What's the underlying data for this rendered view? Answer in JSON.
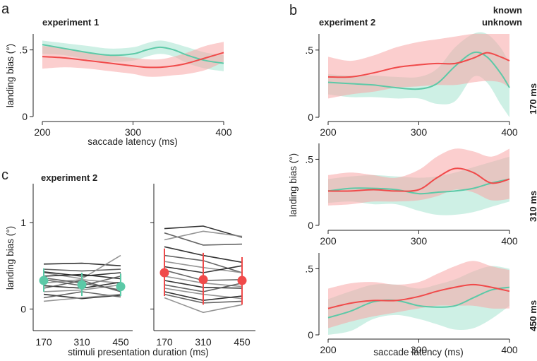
{
  "colors": {
    "known": "#5cc9a7",
    "unknown": "#f04a4a",
    "known_band": "#a6e3d0",
    "unknown_band": "#f7a6a6",
    "line_dark": "#2b2b2b"
  },
  "legend": {
    "known": "known",
    "unknown": "unknown"
  },
  "panels": {
    "a": {
      "letter": "a",
      "title": "experiment 1",
      "ylabel": "landing bias (°)",
      "xlabel": "saccade latency (ms)"
    },
    "b": {
      "letter": "b",
      "title": "experiment 2",
      "ylabel": "landing bias (°)",
      "xlabel": "saccade latency (ms)",
      "rows": [
        {
          "label": "170 ms"
        },
        {
          "label": "310 ms"
        },
        {
          "label": "450 ms"
        }
      ]
    },
    "c": {
      "letter": "c",
      "title": "experiment 2",
      "ylabel": "landing bias (°)",
      "xlabel": "stimuli presentation duration (ms)"
    }
  },
  "chart_data": [
    {
      "id": "a",
      "type": "line",
      "title": "experiment 1",
      "xlabel": "saccade latency (ms)",
      "ylabel": "landing bias (°)",
      "xlim": [
        200,
        400
      ],
      "ylim": [
        0,
        0.62
      ],
      "xticks": [
        200,
        300,
        400
      ],
      "xtick_labels": [
        "200",
        "300",
        "400"
      ],
      "yticks": [
        0,
        0.5
      ],
      "ytick_labels": [
        "0",
        ".5"
      ],
      "series": [
        {
          "name": "known",
          "x": [
            200,
            225,
            250,
            275,
            300,
            315,
            330,
            345,
            360,
            380,
            400
          ],
          "y": [
            0.54,
            0.51,
            0.48,
            0.46,
            0.47,
            0.5,
            0.52,
            0.5,
            0.46,
            0.42,
            0.4
          ],
          "lo": [
            0.47,
            0.46,
            0.43,
            0.41,
            0.42,
            0.45,
            0.47,
            0.45,
            0.4,
            0.36,
            0.34
          ],
          "hi": [
            0.57,
            0.55,
            0.53,
            0.51,
            0.52,
            0.55,
            0.57,
            0.55,
            0.52,
            0.48,
            0.46
          ]
        },
        {
          "name": "unknown",
          "x": [
            200,
            225,
            250,
            275,
            300,
            315,
            330,
            345,
            360,
            380,
            400
          ],
          "y": [
            0.45,
            0.44,
            0.42,
            0.4,
            0.38,
            0.37,
            0.37,
            0.38,
            0.4,
            0.44,
            0.48
          ],
          "lo": [
            0.36,
            0.37,
            0.36,
            0.34,
            0.32,
            0.3,
            0.3,
            0.31,
            0.32,
            0.35,
            0.41
          ],
          "hi": [
            0.53,
            0.51,
            0.48,
            0.46,
            0.44,
            0.43,
            0.43,
            0.45,
            0.48,
            0.53,
            0.56
          ]
        }
      ]
    },
    {
      "id": "b1",
      "type": "line",
      "row_label": "170 ms",
      "xlim": [
        200,
        400
      ],
      "ylim": [
        0,
        0.62
      ],
      "xticks": [
        200,
        300,
        400
      ],
      "xtick_labels": [
        "200",
        "300",
        "400"
      ],
      "yticks": [
        0,
        0.5
      ],
      "ytick_labels": [
        "0",
        ".5"
      ],
      "series": [
        {
          "name": "known",
          "x": [
            200,
            225,
            250,
            275,
            300,
            320,
            340,
            360,
            375,
            390,
            400
          ],
          "y": [
            0.26,
            0.25,
            0.24,
            0.22,
            0.21,
            0.25,
            0.38,
            0.48,
            0.45,
            0.33,
            0.22
          ],
          "lo": [
            0.17,
            0.15,
            0.15,
            0.14,
            0.14,
            0.1,
            0.12,
            0.3,
            0.26,
            0.1,
            0.0
          ],
          "hi": [
            0.32,
            0.31,
            0.31,
            0.3,
            0.3,
            0.36,
            0.52,
            0.62,
            0.62,
            0.52,
            0.4
          ]
        },
        {
          "name": "unknown",
          "x": [
            200,
            225,
            250,
            275,
            300,
            320,
            340,
            360,
            375,
            390,
            400
          ],
          "y": [
            0.3,
            0.3,
            0.33,
            0.37,
            0.39,
            0.4,
            0.4,
            0.44,
            0.48,
            0.45,
            0.42
          ],
          "lo": [
            0.14,
            0.17,
            0.19,
            0.22,
            0.23,
            0.24,
            0.24,
            0.26,
            0.27,
            0.26,
            0.22
          ],
          "hi": [
            0.45,
            0.42,
            0.46,
            0.52,
            0.56,
            0.58,
            0.6,
            0.62,
            0.62,
            0.62,
            0.62
          ]
        }
      ]
    },
    {
      "id": "b2",
      "type": "line",
      "row_label": "310 ms",
      "xlim": [
        200,
        400
      ],
      "ylim": [
        0,
        0.62
      ],
      "xticks": [
        200,
        300,
        400
      ],
      "xtick_labels": [
        "200",
        "300",
        "400"
      ],
      "yticks": [
        0,
        0.5
      ],
      "ytick_labels": [
        "0",
        ".5"
      ],
      "series": [
        {
          "name": "known",
          "x": [
            200,
            225,
            250,
            275,
            300,
            320,
            340,
            360,
            380,
            400
          ],
          "y": [
            0.26,
            0.28,
            0.28,
            0.27,
            0.24,
            0.25,
            0.26,
            0.28,
            0.32,
            0.35
          ],
          "lo": [
            0.17,
            0.18,
            0.16,
            0.16,
            0.11,
            0.08,
            0.08,
            0.1,
            0.14,
            0.18
          ],
          "hi": [
            0.35,
            0.37,
            0.38,
            0.37,
            0.36,
            0.37,
            0.4,
            0.44,
            0.48,
            0.52
          ]
        },
        {
          "name": "unknown",
          "x": [
            200,
            225,
            250,
            275,
            300,
            320,
            340,
            360,
            380,
            400
          ],
          "y": [
            0.26,
            0.26,
            0.27,
            0.26,
            0.27,
            0.36,
            0.43,
            0.4,
            0.32,
            0.35
          ],
          "lo": [
            0.15,
            0.16,
            0.18,
            0.18,
            0.19,
            0.22,
            0.27,
            0.25,
            0.19,
            0.2
          ],
          "hi": [
            0.38,
            0.4,
            0.38,
            0.36,
            0.42,
            0.52,
            0.58,
            0.56,
            0.52,
            0.58
          ]
        }
      ]
    },
    {
      "id": "b3",
      "type": "line",
      "row_label": "450 ms",
      "xlim": [
        200,
        400
      ],
      "ylim": [
        0,
        0.62
      ],
      "xticks": [
        200,
        300,
        400
      ],
      "xtick_labels": [
        "200",
        "300",
        "400"
      ],
      "yticks": [
        0,
        0.5
      ],
      "ytick_labels": [
        "0",
        ".5"
      ],
      "series": [
        {
          "name": "known",
          "x": [
            200,
            225,
            250,
            275,
            300,
            320,
            340,
            360,
            380,
            400
          ],
          "y": [
            0.13,
            0.18,
            0.25,
            0.26,
            0.22,
            0.21,
            0.22,
            0.28,
            0.34,
            0.36
          ],
          "lo": [
            0.0,
            0.03,
            0.12,
            0.15,
            0.12,
            0.08,
            0.04,
            0.05,
            0.12,
            0.22
          ],
          "hi": [
            0.27,
            0.33,
            0.38,
            0.38,
            0.35,
            0.38,
            0.42,
            0.48,
            0.52,
            0.5
          ]
        },
        {
          "name": "unknown",
          "x": [
            200,
            225,
            250,
            275,
            300,
            320,
            340,
            360,
            380,
            400
          ],
          "y": [
            0.2,
            0.24,
            0.26,
            0.26,
            0.29,
            0.33,
            0.36,
            0.38,
            0.36,
            0.33
          ],
          "lo": [
            0.05,
            0.1,
            0.14,
            0.17,
            0.2,
            0.22,
            0.22,
            0.22,
            0.2,
            0.2
          ],
          "hi": [
            0.35,
            0.39,
            0.4,
            0.38,
            0.4,
            0.46,
            0.52,
            0.56,
            0.52,
            0.49
          ]
        }
      ]
    },
    {
      "id": "c",
      "type": "scatter",
      "title": "experiment 2",
      "xlabel": "stimuli presentation duration (ms)",
      "ylabel": "landing bias (°)",
      "categories": [
        "170",
        "310",
        "450"
      ],
      "ylim": [
        -0.25,
        1.45
      ],
      "yticks": [
        0,
        1
      ],
      "ytick_labels": [
        "0",
        "1"
      ],
      "groups": [
        {
          "name": "known",
          "means": [
            0.33,
            0.28,
            0.26
          ],
          "err_lo": [
            0.2,
            0.15,
            0.15
          ],
          "err_hi": [
            0.47,
            0.42,
            0.41
          ],
          "subjects": [
            [
              0.52,
              0.53,
              0.5
            ],
            [
              0.46,
              0.44,
              0.46
            ],
            [
              0.42,
              0.35,
              0.62
            ],
            [
              0.38,
              0.4,
              0.35
            ],
            [
              0.34,
              0.27,
              0.38
            ],
            [
              0.3,
              0.34,
              0.3
            ],
            [
              0.27,
              0.24,
              0.31
            ],
            [
              0.24,
              0.33,
              0.2
            ],
            [
              0.2,
              0.22,
              0.28
            ],
            [
              0.17,
              0.12,
              0.16
            ],
            [
              0.13,
              0.2,
              0.14
            ],
            [
              0.09,
              0.13,
              0.17
            ],
            [
              0.43,
              0.38,
              0.42
            ],
            [
              0.36,
              0.3,
              0.22
            ]
          ]
        },
        {
          "name": "unknown",
          "means": [
            0.42,
            0.34,
            0.33
          ],
          "err_lo": [
            0.15,
            0.05,
            0.05
          ],
          "err_hi": [
            0.7,
            0.65,
            0.6
          ],
          "subjects": [
            [
              0.93,
              0.96,
              0.83
            ],
            [
              0.88,
              0.74,
              0.75
            ],
            [
              0.8,
              0.9,
              0.84
            ],
            [
              0.72,
              0.62,
              0.54
            ],
            [
              0.62,
              0.56,
              0.42
            ],
            [
              0.55,
              0.48,
              0.42
            ],
            [
              0.49,
              0.42,
              0.5
            ],
            [
              0.45,
              0.33,
              0.34
            ],
            [
              0.38,
              0.3,
              0.26
            ],
            [
              0.33,
              0.25,
              0.24
            ],
            [
              0.28,
              0.2,
              0.3
            ],
            [
              0.24,
              0.17,
              0.12
            ],
            [
              0.2,
              0.1,
              0.15
            ],
            [
              0.17,
              0.07,
              0.09
            ],
            [
              0.13,
              -0.04,
              0.05
            ]
          ]
        }
      ]
    }
  ]
}
